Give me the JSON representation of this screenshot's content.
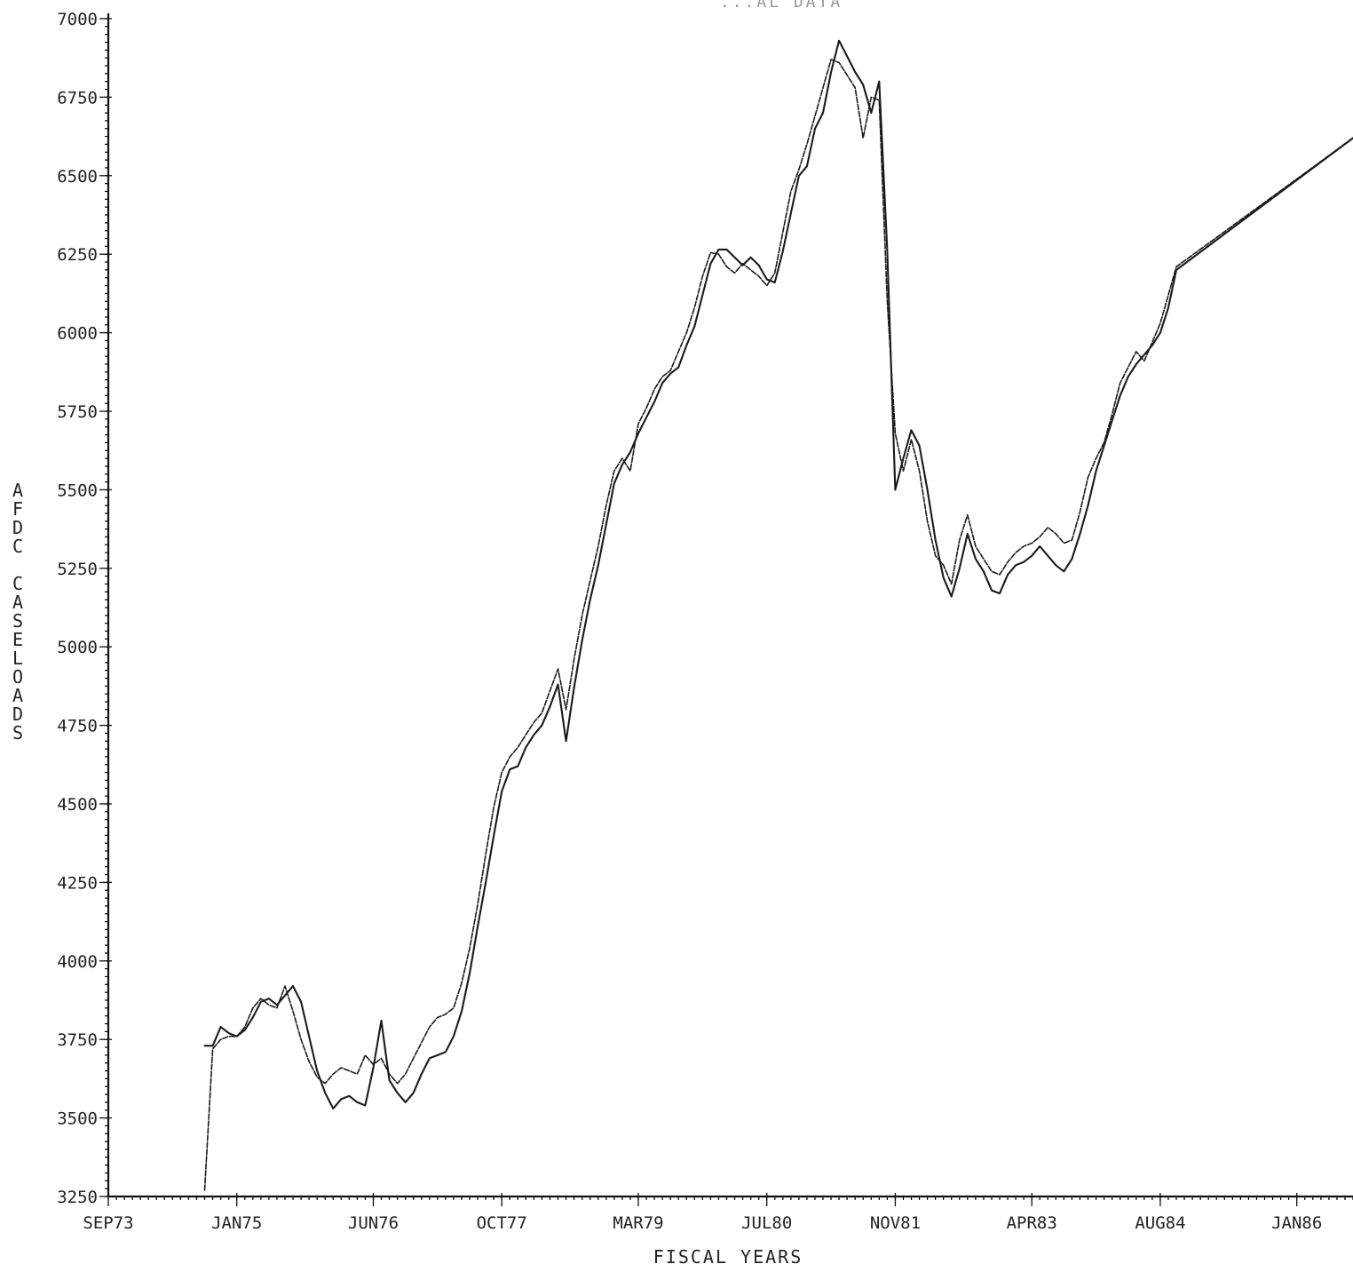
{
  "chart_data": {
    "type": "line",
    "title": "...AL DATA",
    "xlabel": "FISCAL YEARS",
    "ylabel": "AFDC CASELOADS",
    "ylim": [
      3250,
      7000
    ],
    "xlim": [
      "1973-09",
      "1986-08"
    ],
    "y_ticks": [
      3250,
      3500,
      3750,
      4000,
      4250,
      4500,
      4750,
      5000,
      5250,
      5500,
      5750,
      6000,
      6250,
      6500,
      6750,
      7000
    ],
    "x_ticks": [
      "SEP73",
      "JAN75",
      "JUN76",
      "OCT77",
      "MAR79",
      "JUL80",
      "NOV81",
      "APR83",
      "AUG84",
      "JAN86"
    ],
    "x_tick_dates": [
      "1973-09",
      "1975-01",
      "1976-06",
      "1977-10",
      "1979-03",
      "1980-07",
      "1981-11",
      "1983-04",
      "1984-08",
      "1986-01"
    ],
    "grid": false,
    "legend": "none",
    "series": [
      {
        "style": "solid",
        "points": [
          [
            "1974-09",
            3730
          ],
          [
            "1974-10",
            3730
          ],
          [
            "1974-11",
            3790
          ],
          [
            "1974-12",
            3770
          ],
          [
            "1975-01",
            3760
          ],
          [
            "1975-02",
            3780
          ],
          [
            "1975-03",
            3820
          ],
          [
            "1975-04",
            3870
          ],
          [
            "1975-05",
            3880
          ],
          [
            "1975-06",
            3860
          ],
          [
            "1975-07",
            3890
          ],
          [
            "1975-08",
            3920
          ],
          [
            "1975-09",
            3870
          ],
          [
            "1975-10",
            3760
          ],
          [
            "1975-11",
            3650
          ],
          [
            "1975-12",
            3580
          ],
          [
            "1976-01",
            3530
          ],
          [
            "1976-02",
            3560
          ],
          [
            "1976-03",
            3570
          ],
          [
            "1976-04",
            3550
          ],
          [
            "1976-05",
            3540
          ],
          [
            "1976-06",
            3660
          ],
          [
            "1976-07",
            3810
          ],
          [
            "1976-08",
            3620
          ],
          [
            "1976-09",
            3580
          ],
          [
            "1976-10",
            3550
          ],
          [
            "1976-11",
            3580
          ],
          [
            "1976-12",
            3640
          ],
          [
            "1977-01",
            3690
          ],
          [
            "1977-02",
            3700
          ],
          [
            "1977-03",
            3710
          ],
          [
            "1977-04",
            3760
          ],
          [
            "1977-05",
            3840
          ],
          [
            "1977-06",
            3960
          ],
          [
            "1977-07",
            4110
          ],
          [
            "1977-08",
            4250
          ],
          [
            "1977-09",
            4400
          ],
          [
            "1977-10",
            4540
          ],
          [
            "1977-11",
            4610
          ],
          [
            "1977-12",
            4620
          ],
          [
            "1978-01",
            4680
          ],
          [
            "1978-02",
            4720
          ],
          [
            "1978-03",
            4750
          ],
          [
            "1978-04",
            4810
          ],
          [
            "1978-05",
            4880
          ],
          [
            "1978-06",
            4700
          ],
          [
            "1978-07",
            4870
          ],
          [
            "1978-08",
            5020
          ],
          [
            "1978-09",
            5150
          ],
          [
            "1978-10",
            5260
          ],
          [
            "1978-11",
            5390
          ],
          [
            "1978-12",
            5520
          ],
          [
            "1979-01",
            5580
          ],
          [
            "1979-02",
            5620
          ],
          [
            "1979-03",
            5680
          ],
          [
            "1979-04",
            5730
          ],
          [
            "1979-05",
            5780
          ],
          [
            "1979-06",
            5840
          ],
          [
            "1979-07",
            5870
          ],
          [
            "1979-08",
            5890
          ],
          [
            "1979-09",
            5960
          ],
          [
            "1979-10",
            6020
          ],
          [
            "1979-11",
            6120
          ],
          [
            "1979-12",
            6220
          ],
          [
            "1980-01",
            6265
          ],
          [
            "1980-02",
            6265
          ],
          [
            "1980-03",
            6240
          ],
          [
            "1980-04",
            6215
          ],
          [
            "1980-05",
            6240
          ],
          [
            "1980-06",
            6215
          ],
          [
            "1980-07",
            6170
          ],
          [
            "1980-08",
            6160
          ],
          [
            "1980-09",
            6260
          ],
          [
            "1980-10",
            6380
          ],
          [
            "1980-11",
            6500
          ],
          [
            "1980-12",
            6530
          ],
          [
            "1981-01",
            6650
          ],
          [
            "1981-02",
            6700
          ],
          [
            "1981-03",
            6830
          ],
          [
            "1981-04",
            6930
          ],
          [
            "1981-05",
            6880
          ],
          [
            "1981-06",
            6830
          ],
          [
            "1981-07",
            6790
          ],
          [
            "1981-08",
            6700
          ],
          [
            "1981-09",
            6800
          ],
          [
            "1981-10",
            6260
          ],
          [
            "1981-11",
            5500
          ],
          [
            "1981-12",
            5600
          ],
          [
            "1982-01",
            5690
          ],
          [
            "1982-02",
            5640
          ],
          [
            "1982-03",
            5500
          ],
          [
            "1982-04",
            5340
          ],
          [
            "1982-05",
            5220
          ],
          [
            "1982-06",
            5160
          ],
          [
            "1982-07",
            5250
          ],
          [
            "1982-08",
            5360
          ],
          [
            "1982-09",
            5280
          ],
          [
            "1982-10",
            5240
          ],
          [
            "1982-11",
            5180
          ],
          [
            "1982-12",
            5170
          ],
          [
            "1983-01",
            5230
          ],
          [
            "1983-02",
            5260
          ],
          [
            "1983-03",
            5270
          ],
          [
            "1983-04",
            5290
          ],
          [
            "1983-05",
            5320
          ],
          [
            "1983-06",
            5290
          ],
          [
            "1983-07",
            5260
          ],
          [
            "1983-08",
            5240
          ],
          [
            "1983-09",
            5280
          ],
          [
            "1983-10",
            5360
          ],
          [
            "1983-11",
            5450
          ],
          [
            "1983-12",
            5560
          ],
          [
            "1984-01",
            5640
          ],
          [
            "1984-02",
            5720
          ],
          [
            "1984-03",
            5800
          ],
          [
            "1984-04",
            5860
          ],
          [
            "1984-05",
            5900
          ],
          [
            "1984-06",
            5930
          ],
          [
            "1984-07",
            5960
          ],
          [
            "1984-08",
            6000
          ],
          [
            "1984-09",
            6080
          ],
          [
            "1984-10",
            6200
          ],
          [
            "1986-08",
            6620
          ]
        ]
      },
      {
        "style": "dashed",
        "points": [
          [
            "1974-09",
            3270
          ],
          [
            "1974-10",
            3720
          ],
          [
            "1974-11",
            3750
          ],
          [
            "1974-12",
            3760
          ],
          [
            "1975-01",
            3760
          ],
          [
            "1975-02",
            3790
          ],
          [
            "1975-03",
            3850
          ],
          [
            "1975-04",
            3880
          ],
          [
            "1975-05",
            3860
          ],
          [
            "1975-06",
            3850
          ],
          [
            "1975-07",
            3920
          ],
          [
            "1975-08",
            3840
          ],
          [
            "1975-09",
            3750
          ],
          [
            "1975-10",
            3680
          ],
          [
            "1975-11",
            3630
          ],
          [
            "1975-12",
            3610
          ],
          [
            "1976-01",
            3640
          ],
          [
            "1976-02",
            3660
          ],
          [
            "1976-03",
            3650
          ],
          [
            "1976-04",
            3640
          ],
          [
            "1976-05",
            3700
          ],
          [
            "1976-06",
            3670
          ],
          [
            "1976-07",
            3690
          ],
          [
            "1976-08",
            3640
          ],
          [
            "1976-09",
            3610
          ],
          [
            "1976-10",
            3640
          ],
          [
            "1976-11",
            3690
          ],
          [
            "1976-12",
            3740
          ],
          [
            "1977-01",
            3790
          ],
          [
            "1977-02",
            3820
          ],
          [
            "1977-03",
            3830
          ],
          [
            "1977-04",
            3850
          ],
          [
            "1977-05",
            3930
          ],
          [
            "1977-06",
            4040
          ],
          [
            "1977-07",
            4180
          ],
          [
            "1977-08",
            4340
          ],
          [
            "1977-09",
            4490
          ],
          [
            "1977-10",
            4600
          ],
          [
            "1977-11",
            4650
          ],
          [
            "1977-12",
            4680
          ],
          [
            "1978-01",
            4720
          ],
          [
            "1978-02",
            4760
          ],
          [
            "1978-03",
            4790
          ],
          [
            "1978-04",
            4860
          ],
          [
            "1978-05",
            4930
          ],
          [
            "1978-06",
            4800
          ],
          [
            "1978-07",
            4960
          ],
          [
            "1978-08",
            5100
          ],
          [
            "1978-09",
            5210
          ],
          [
            "1978-10",
            5320
          ],
          [
            "1978-11",
            5450
          ],
          [
            "1978-12",
            5560
          ],
          [
            "1979-01",
            5600
          ],
          [
            "1979-02",
            5560
          ],
          [
            "1979-03",
            5710
          ],
          [
            "1979-04",
            5760
          ],
          [
            "1979-05",
            5820
          ],
          [
            "1979-06",
            5860
          ],
          [
            "1979-07",
            5880
          ],
          [
            "1979-08",
            5940
          ],
          [
            "1979-09",
            6000
          ],
          [
            "1979-10",
            6080
          ],
          [
            "1979-11",
            6180
          ],
          [
            "1979-12",
            6255
          ],
          [
            "1980-01",
            6250
          ],
          [
            "1980-02",
            6210
          ],
          [
            "1980-03",
            6190
          ],
          [
            "1980-04",
            6220
          ],
          [
            "1980-05",
            6200
          ],
          [
            "1980-06",
            6180
          ],
          [
            "1980-07",
            6150
          ],
          [
            "1980-08",
            6190
          ],
          [
            "1980-09",
            6320
          ],
          [
            "1980-10",
            6450
          ],
          [
            "1980-11",
            6520
          ],
          [
            "1980-12",
            6600
          ],
          [
            "1981-01",
            6690
          ],
          [
            "1981-02",
            6780
          ],
          [
            "1981-03",
            6870
          ],
          [
            "1981-04",
            6860
          ],
          [
            "1981-05",
            6820
          ],
          [
            "1981-06",
            6780
          ],
          [
            "1981-07",
            6620
          ],
          [
            "1981-08",
            6750
          ],
          [
            "1981-09",
            6740
          ],
          [
            "1981-10",
            6100
          ],
          [
            "1981-11",
            5680
          ],
          [
            "1981-12",
            5560
          ],
          [
            "1982-01",
            5660
          ],
          [
            "1982-02",
            5560
          ],
          [
            "1982-03",
            5400
          ],
          [
            "1982-04",
            5290
          ],
          [
            "1982-05",
            5260
          ],
          [
            "1982-06",
            5200
          ],
          [
            "1982-07",
            5340
          ],
          [
            "1982-08",
            5420
          ],
          [
            "1982-09",
            5320
          ],
          [
            "1982-10",
            5280
          ],
          [
            "1982-11",
            5240
          ],
          [
            "1982-12",
            5230
          ],
          [
            "1983-01",
            5270
          ],
          [
            "1983-02",
            5300
          ],
          [
            "1983-03",
            5320
          ],
          [
            "1983-04",
            5330
          ],
          [
            "1983-05",
            5350
          ],
          [
            "1983-06",
            5380
          ],
          [
            "1983-07",
            5360
          ],
          [
            "1983-08",
            5330
          ],
          [
            "1983-09",
            5340
          ],
          [
            "1983-10",
            5430
          ],
          [
            "1983-11",
            5540
          ],
          [
            "1983-12",
            5600
          ],
          [
            "1984-01",
            5650
          ],
          [
            "1984-02",
            5740
          ],
          [
            "1984-03",
            5840
          ],
          [
            "1984-04",
            5890
          ],
          [
            "1984-05",
            5940
          ],
          [
            "1984-06",
            5910
          ],
          [
            "1984-07",
            5970
          ],
          [
            "1984-08",
            6030
          ],
          [
            "1984-09",
            6120
          ],
          [
            "1984-10",
            6210
          ],
          [
            "1986-08",
            6620
          ]
        ]
      }
    ]
  }
}
